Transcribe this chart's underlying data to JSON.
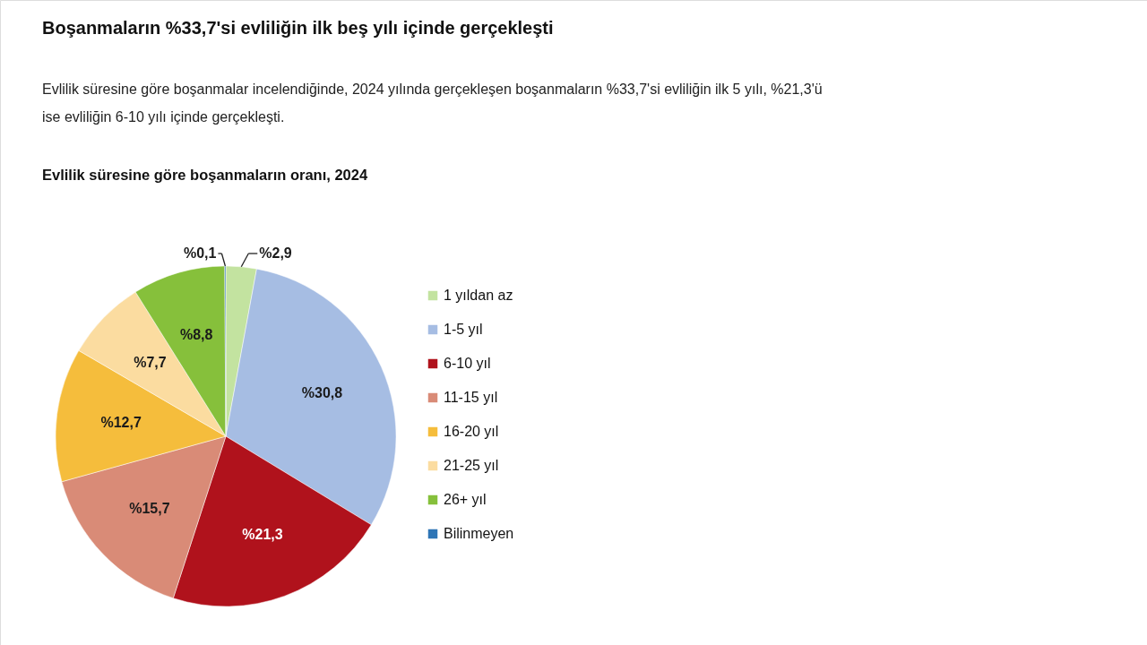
{
  "chart_data": {
    "type": "pie",
    "title": "Evlilik süresine göre boşanmaların oranı, 2024",
    "annotations": [
      "Boşanmaların %33,7'si evliliğin ilk beş yılı içinde gerçekleşti",
      "Evlilik süresine göre boşanmalar incelendiğinde, 2024 yılında gerçekleşen boşanmaların %33,7'si evliliğin ilk 5 yılı, %21,3'ü ise evliliğin 6-10 yılı içinde gerçekleşti."
    ],
    "categories": [
      "1 yıldan az",
      "1-5 yıl",
      "6-10 yıl",
      "11-15 yıl",
      "16-20 yıl",
      "21-25 yıl",
      "26+ yıl",
      "Bilinmeyen"
    ],
    "values": [
      2.9,
      30.8,
      21.3,
      15.7,
      12.7,
      7.7,
      8.8,
      0.1
    ],
    "colors": [
      "#c3e3a0",
      "#a6bde3",
      "#b0121c",
      "#d98b77",
      "#f5bd3c",
      "#fbdca0",
      "#86c03b",
      "#2e75b6"
    ],
    "value_labels": [
      "%2,9",
      "%30,8",
      "%21,3",
      "%15,7",
      "%12,7",
      "%7,7",
      "%8,8",
      "%0,1"
    ],
    "legend": "right"
  }
}
